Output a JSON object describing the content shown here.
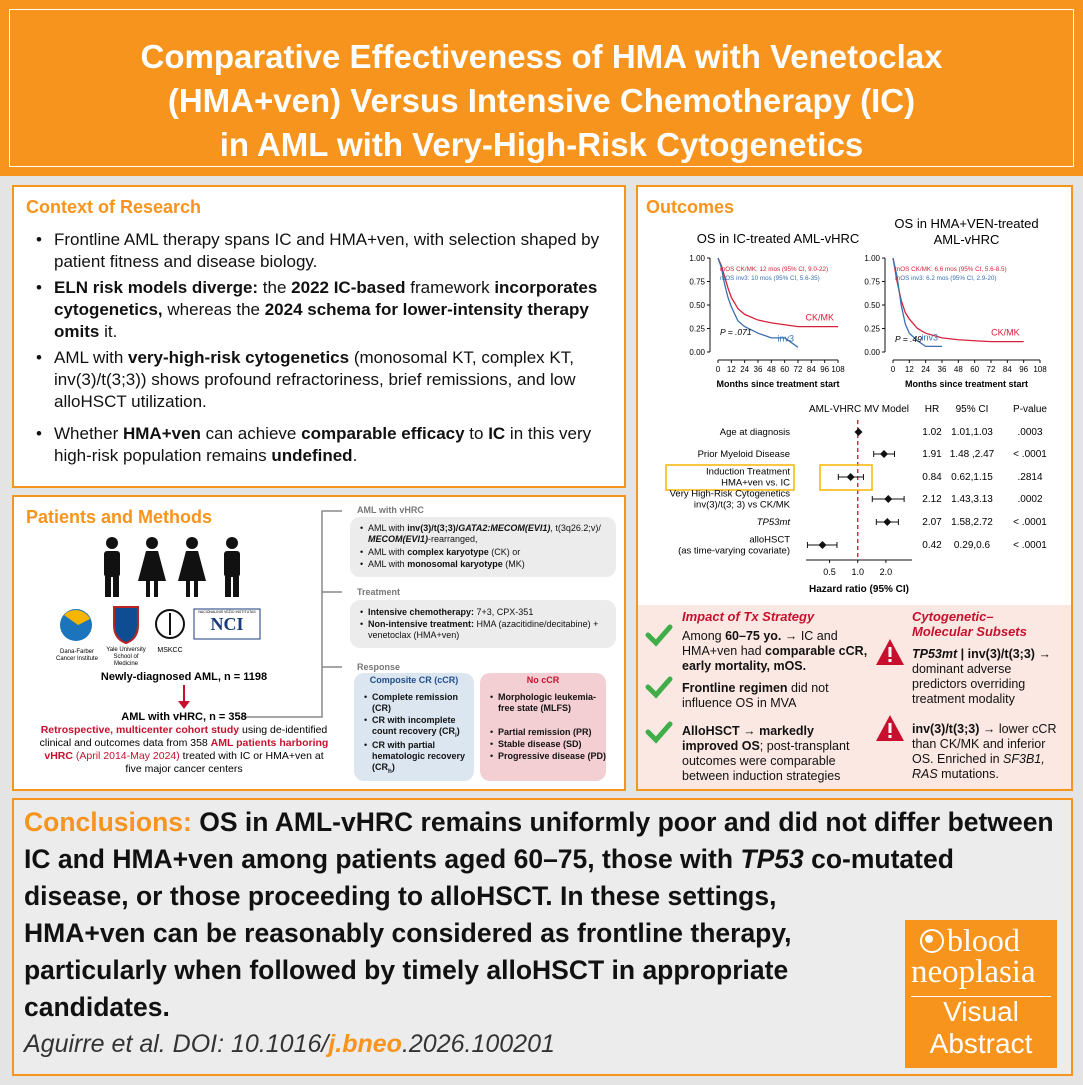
{
  "header": {
    "title": [
      "Comparative Effectiveness of HMA with Venetoclax",
      "(HMA+ven) Versus Intensive Chemotherapy (IC)",
      "in AML with Very-High-Risk Cytogenetics"
    ]
  },
  "context": {
    "title": "Context of Research",
    "bullets": [
      [
        "Frontline AML therapy spans IC and HMA+ven, with selection shaped by patient fitness and disease biology."
      ],
      [
        {
          "text": "ELN risk models diverge:",
          "style": "b"
        },
        " the ",
        {
          "text": "2022 IC-based",
          "style": "b"
        },
        " framework ",
        {
          "text": "incorporates cytogenetics,",
          "style": "b"
        },
        " whereas the ",
        {
          "text": "2024 schema for lower-intensity therapy omits",
          "style": "b"
        },
        " it."
      ],
      [
        "AML with ",
        {
          "text": "very-high-risk cytogenetics",
          "style": "b"
        },
        " (monosomal KT, complex KT, inv(3)/t(3;3)) shows profound refractoriness, brief remissions, and low alloHSCT utilization."
      ],
      [
        "Whether ",
        {
          "text": "HMA+ven",
          "style": "b"
        },
        " can achieve ",
        {
          "text": "comparable efficacy",
          "style": "b"
        },
        " to ",
        {
          "text": "IC",
          "style": "b"
        },
        " in this very high-risk population remains ",
        {
          "text": "undefined",
          "style": "b"
        },
        "."
      ]
    ]
  },
  "patients": {
    "title": "Patients and Methods",
    "logos": [
      [
        "Dana-Farber",
        "Cancer Institute"
      ],
      [
        "Yale University",
        "School of Medicine"
      ],
      [
        "MSKCC"
      ],
      [
        "NACIONALINIS VĖŽIO INSTITUTAS",
        "NCI"
      ]
    ],
    "flow": {
      "start": "Newly-diagnosed AML, n = 1198",
      "cohort": "AML with vHRC, n = 358",
      "description": [
        {
          "text": "Retrospective, multicenter cohort study",
          "style": "redb"
        },
        " using de-identified clinical and outcomes data from 358 ",
        {
          "text": "AML patients harboring vHRC",
          "style": "redb"
        },
        {
          "text": " (April 2014-May 2024)",
          "style": "red"
        },
        " treated with IC or HMA+ven at five major cancer centers"
      ]
    },
    "criteria": {
      "title": "AML with vHRC",
      "items": [
        [
          "AML with ",
          {
            "text": "inv(3)/t(3;3)/",
            "style": "b"
          },
          {
            "text": "GATA2:MECOM(EVI1)",
            "style": "bi"
          },
          ", t(3q26.2;v)/ ",
          {
            "text": "MECOM(EVI1)",
            "style": "bi"
          },
          "-rearranged,"
        ],
        [
          "AML with ",
          {
            "text": "complex karyotype",
            "style": "b"
          },
          " (CK) or"
        ],
        [
          "AML with ",
          {
            "text": "monosomal karyotype",
            "style": "b"
          },
          " (MK)"
        ]
      ]
    },
    "treatment": {
      "title": "Treatment",
      "items": [
        [
          {
            "text": "Intensive chemotherapy:",
            "style": "b"
          },
          " 7+3, CPX-351"
        ],
        [
          {
            "text": "Non-intensive treatment:",
            "style": "b"
          },
          " HMA (azacitidine/decitabine) + venetoclax (HMA+ven)"
        ]
      ]
    },
    "response": {
      "title": "Response",
      "ccr": {
        "title": "Composite CR (cCR)",
        "items": [
          [
            {
              "text": "Complete remission (CR)",
              "style": "b"
            }
          ],
          [
            {
              "text": "CR with incomplete count recovery (CR",
              "style": "b"
            },
            {
              "text": "i",
              "style": "sub"
            },
            {
              "text": ")",
              "style": "b"
            }
          ],
          [
            {
              "text": "CR with partial hematologic recovery (CR",
              "style": "b"
            },
            {
              "text": "h",
              "style": "sub"
            },
            {
              "text": ")",
              "style": "b"
            }
          ]
        ]
      },
      "no_ccr": {
        "title": "No cCR",
        "items": [
          [
            {
              "text": "Morphologic leukemia-free state (MLFS)",
              "style": "b"
            }
          ],
          [
            {
              "text": "Partial remission (PR)",
              "style": "b"
            }
          ],
          [
            {
              "text": "Stable disease (SD)",
              "style": "b"
            }
          ],
          [
            {
              "text": "Progressive disease (PD)",
              "style": "b"
            }
          ]
        ]
      }
    }
  },
  "outcomes": {
    "title": "Outcomes"
  },
  "chart_data": [
    {
      "type": "line",
      "title": [
        "OS in IC-treated AML-vHRC"
      ],
      "x_label": "Months since treatment start",
      "x": [
        0,
        3,
        6,
        9,
        12,
        18,
        24,
        36,
        48,
        60,
        72,
        84,
        96,
        108
      ],
      "series": [
        {
          "name": "CK/MK",
          "color": "#d6213a",
          "values": [
            1,
            0.92,
            0.8,
            0.68,
            0.58,
            0.46,
            0.4,
            0.34,
            0.31,
            0.29,
            0.27,
            0.27,
            0.27,
            0.27
          ]
        },
        {
          "name": "inv3",
          "color": "#3a6fb0",
          "values": [
            1,
            0.9,
            0.72,
            0.58,
            0.48,
            0.33,
            0.27,
            0.2,
            0.15,
            0.15,
            0.05,
            null,
            null,
            null
          ]
        }
      ],
      "annotations": [
        "mOS CK/MK: 12 mos (95% CI, 9.0-22)",
        "mOS inv3: 10 mos (95% CI, 5.6-35)"
      ],
      "p_value": "P = .071",
      "xlim": [
        0,
        108
      ],
      "ylim": [
        0,
        1
      ],
      "xticks": [
        0,
        12,
        24,
        36,
        48,
        60,
        72,
        84,
        96,
        108
      ],
      "yticks": [
        {
          "value": 0,
          "label": "0.00"
        },
        0.25,
        {
          "value": 0.5,
          "label": "0.50"
        },
        0.75,
        {
          "value": 1,
          "label": "1.00"
        }
      ]
    },
    {
      "type": "line",
      "title": [
        "OS in HMA+VEN-treated",
        "AML-vHRC"
      ],
      "x_label": "Months since treatment start",
      "x": [
        0,
        3,
        6,
        9,
        12,
        18,
        24,
        36,
        48,
        60,
        72,
        84,
        96,
        108
      ],
      "series": [
        {
          "name": "CK/MK",
          "color": "#d6213a",
          "values": [
            1,
            0.75,
            0.55,
            0.42,
            0.35,
            0.25,
            0.2,
            0.15,
            0.13,
            0.12,
            0.11,
            0.11,
            0.11,
            null
          ]
        },
        {
          "name": "inv3",
          "color": "#3a6fb0",
          "values": [
            1,
            0.8,
            0.5,
            0.3,
            0.2,
            0.12,
            0.06,
            0.06,
            null,
            null,
            null,
            null,
            null,
            null
          ]
        }
      ],
      "annotations": [
        "mOS CK/MK: 6.6 mos (95% CI, 5.6-8.5)",
        "mOS inv3: 6.2 mos (95% CI, 2.9-20)"
      ],
      "p_value": "P = .49",
      "xlim": [
        0,
        108
      ],
      "ylim": [
        0,
        1
      ],
      "xticks": [
        0,
        12,
        24,
        36,
        48,
        60,
        72,
        84,
        96,
        108
      ],
      "yticks": [
        {
          "value": 0,
          "label": "0.00"
        },
        0.25,
        {
          "value": 0.5,
          "label": "0.50"
        },
        0.75,
        {
          "value": 1,
          "label": "1.00"
        }
      ]
    },
    {
      "type": "forest",
      "title": "AML-VHRC MV Model",
      "columns": [
        "HR",
        "95% CI",
        "P-value"
      ],
      "x_label": "Hazard ratio (95% CI)",
      "log_scale": true,
      "highlight_row": 2,
      "xlim": [
        0.28,
        3.8
      ],
      "xticks": [
        0.5,
        {
          "value": 1,
          "label": "1.0"
        },
        {
          "value": 2,
          "label": "2.0"
        }
      ],
      "rows": [
        {
          "label": [
            "Age at diagnosis"
          ],
          "hr": 1.02,
          "ci": "1.01,1.03",
          "p": ".0003"
        },
        {
          "label": [
            "Prior Myeloid Disease"
          ],
          "hr": 1.91,
          "ci": "1.48 ,2.47",
          "p": "< .0001"
        },
        {
          "label": [
            "Induction Treatment",
            "HMA+ven vs. IC"
          ],
          "hr": 0.84,
          "ci": "0.62,1.15",
          "p": ".2814"
        },
        {
          "label": [
            "Very High-Risk Cytogenetics",
            "inv(3)/t(3; 3) vs CK/MK"
          ],
          "hr": 2.12,
          "ci": "1.43,3.13",
          "p": ".0002"
        },
        {
          "label": [
            "TP53mt"
          ],
          "hr": 2.07,
          "ci": "1.58,2.72",
          "p": "< .0001"
        },
        {
          "label": [
            "alloHSCT",
            "(as time-varying covariate)"
          ],
          "hr": 0.42,
          "ci": "0.29,0.6",
          "p": "< .0001"
        }
      ]
    }
  ],
  "impact": {
    "left": {
      "title": "Impact of Tx Strategy",
      "items": [
        [
          "Among ",
          {
            "text": "60–75 yo.",
            "style": "b"
          },
          " → IC and HMA+ven had ",
          {
            "text": "comparable cCR, early mortality, mOS.",
            "style": "b"
          }
        ],
        [
          {
            "text": "Frontline regimen",
            "style": "b"
          },
          " did not influence OS in MVA"
        ],
        [
          {
            "text": "AlloHSCT → markedly improved OS",
            "style": "b"
          },
          "; post-transplant outcomes were comparable between induction strategies"
        ]
      ]
    },
    "right": {
      "title": [
        "Cytogenetic–",
        "Molecular Subsets"
      ],
      "items": [
        [
          {
            "text": "TP53mt",
            "style": "bi"
          },
          {
            "text": " | inv(3)/t(3;3)",
            "style": "b"
          },
          " → dominant adverse predictors overriding treatment modality"
        ],
        [
          {
            "text": "inv(3)/t(3;3)",
            "style": "b"
          },
          " → lower cCR than CK/MK and inferior OS. Enriched in ",
          {
            "text": "SF3B1, RAS",
            "style": "i"
          },
          " mutations."
        ]
      ]
    }
  },
  "conclusions": {
    "text": [
      {
        "text": "Conclusions:",
        "style": "orange"
      },
      " OS in AML-vHRC remains uniformly poor and did not differ between IC and HMA+ven among patients aged 60–75, those with ",
      {
        "text": "TP53",
        "style": "i"
      },
      " co-mutated disease, or those proceeding to alloHSCT. In these settings, HMA+ven can be reasonably considered as frontline therapy, particularly when followed by timely alloHSCT in appropriate candidates."
    ],
    "citation": [
      "Aguirre et al. DOI: 10.1016/",
      {
        "text": "j.bneo",
        "style": "orange"
      },
      ".2026.100201"
    ],
    "logo": [
      "blood",
      "neoplasia",
      "Visual",
      "Abstract"
    ]
  }
}
